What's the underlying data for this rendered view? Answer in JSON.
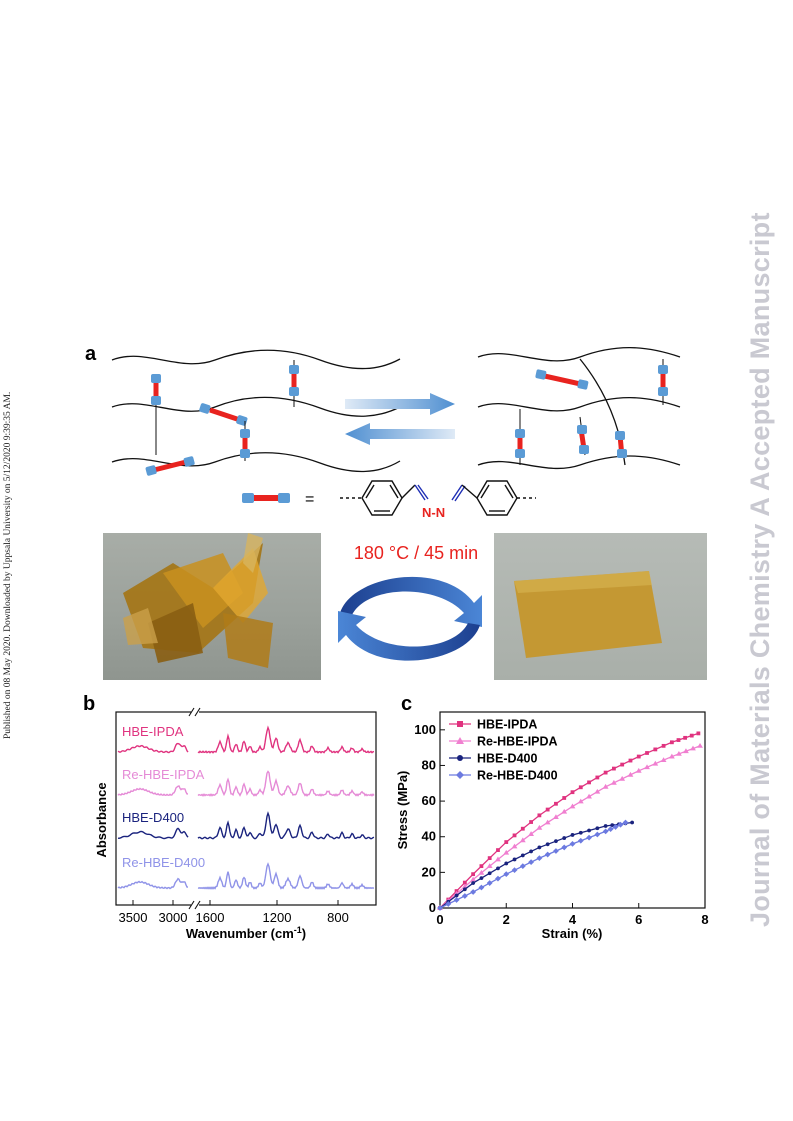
{
  "side_notes": {
    "left": "Published on 08 May 2020. Downloaded by Uppsala University on 5/12/2020 9:39:35 AM.",
    "right": "Journal of Materials Chemistry A Accepted Manuscript"
  },
  "panel_a": {
    "letter": "a",
    "linker_equals": "=",
    "azine_label": "N-N",
    "condition": "180 °C / 45 min"
  },
  "panel_b": {
    "letter": "b",
    "ylabel": "Absorbance",
    "xlabel": "Wavenumber (cm",
    "xlabel_sup": "-1",
    "xlabel_close": ")",
    "xticks": [
      "3500",
      "3000",
      "1600",
      "1200",
      "800"
    ],
    "spectra": [
      {
        "name": "HBE-IPDA",
        "color": "#e0337f"
      },
      {
        "name": "Re-HBE-IPDA",
        "color": "#e58ad6"
      },
      {
        "name": "HBE-D400",
        "color": "#1a237e"
      },
      {
        "name": "Re-HBE-D400",
        "color": "#8f93e8"
      }
    ]
  },
  "chart_data": {
    "type": "line",
    "title": "",
    "xlabel": "Strain (%)",
    "ylabel": "Stress (MPa)",
    "xlim": [
      0,
      8
    ],
    "ylim": [
      0,
      110
    ],
    "xticks": [
      "0",
      "2",
      "4",
      "6",
      "8"
    ],
    "yticks": [
      "0",
      "20",
      "40",
      "60",
      "80",
      "100"
    ],
    "legend_position": "top-left",
    "series": [
      {
        "name": "HBE-IPDA",
        "color": "#e0337f",
        "marker": "square",
        "x": [
          0,
          1,
          2,
          3,
          4,
          5,
          6,
          7,
          7.8
        ],
        "y": [
          0,
          19,
          37,
          52,
          65,
          76,
          85,
          93,
          98
        ]
      },
      {
        "name": "Re-HBE-IPDA",
        "color": "#f07fd0",
        "marker": "triangle",
        "x": [
          0,
          1,
          2,
          3,
          4,
          5,
          6,
          7,
          7.85
        ],
        "y": [
          0,
          16,
          31,
          45,
          57,
          68,
          77,
          85,
          91
        ]
      },
      {
        "name": "HBE-D400",
        "color": "#1a237e",
        "marker": "circle",
        "x": [
          0,
          1,
          2,
          3,
          4,
          5,
          5.8
        ],
        "y": [
          0,
          14,
          25,
          34,
          41,
          46,
          48
        ]
      },
      {
        "name": "Re-HBE-D400",
        "color": "#6c7ae0",
        "marker": "diamond",
        "x": [
          0,
          1,
          2,
          3,
          4,
          5,
          5.6
        ],
        "y": [
          0,
          9,
          19,
          28,
          36,
          43,
          48
        ]
      }
    ]
  }
}
